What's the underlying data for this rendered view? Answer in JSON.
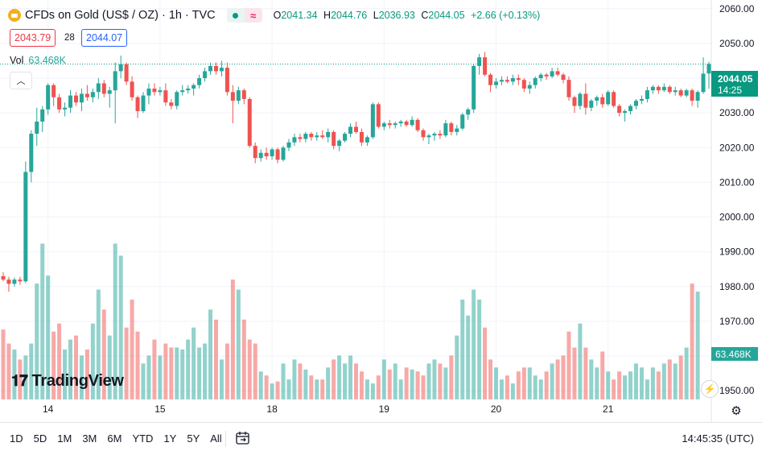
{
  "header": {
    "title": "CFDs on Gold (US$ / OZ) · 1h · TVC",
    "status_icon": "market-open-dot",
    "delay_icon": "wave-icon",
    "ohlc": {
      "o_label": "O",
      "o": "2041.34",
      "h_label": "H",
      "h": "2044.76",
      "l_label": "L",
      "l": "2036.93",
      "c_label": "C",
      "c": "2044.05",
      "change": "+2.66 (+0.13%)"
    }
  },
  "quote": {
    "bid": "2043.79",
    "spread": "28",
    "ask": "2044.07"
  },
  "volume": {
    "label": "Vol",
    "value": "63.468K"
  },
  "watermark": "TradingView",
  "price_label": {
    "value": "2044.05",
    "countdown": "14:25"
  },
  "volume_label": "63.468K",
  "bottom_bar": {
    "ranges": [
      "1D",
      "5D",
      "1M",
      "3M",
      "6M",
      "YTD",
      "1Y",
      "5Y",
      "All"
    ],
    "clock": "14:45:35 (UTC)"
  },
  "colors": {
    "up": "#26a69a",
    "down": "#ef5350",
    "volume_up": "#26a69a80",
    "volume_down": "#ef535080",
    "last_price": "#089981",
    "grid": "#f0f3fa"
  },
  "chart_data": {
    "type": "candlestick",
    "title": "CFDs on Gold (US$ / OZ) · 1h · TVC",
    "y_axis": {
      "ticks": [
        1950,
        1960,
        1970,
        1980,
        1990,
        2000,
        2010,
        2020,
        2030,
        2040,
        2050,
        2060
      ],
      "ylim": [
        1947.5,
        2062.5
      ]
    },
    "x_axis": {
      "ticks": [
        {
          "label": "14",
          "index": 8
        },
        {
          "label": "15",
          "index": 28
        },
        {
          "label": "18",
          "index": 48
        },
        {
          "label": "19",
          "index": 68
        },
        {
          "label": "20",
          "index": 88
        },
        {
          "label": "21",
          "index": 108
        }
      ]
    },
    "candles": [
      [
        1983.0,
        1984.2,
        1981.5,
        1982.0
      ],
      [
        1982.0,
        1982.8,
        1978.5,
        1980.8
      ],
      [
        1980.8,
        1982.6,
        1980.0,
        1982.0
      ],
      [
        1982.0,
        1982.8,
        1980.5,
        1981.5
      ],
      [
        1981.5,
        2016.0,
        1981.0,
        2013.0
      ],
      [
        2013.0,
        2025.0,
        2010.0,
        2024.0
      ],
      [
        2024.0,
        2031.5,
        2020.5,
        2027.5
      ],
      [
        2027.5,
        2032.0,
        2024.5,
        2031.0
      ],
      [
        2031.0,
        2038.5,
        2029.5,
        2038.0
      ],
      [
        2038.0,
        2038.5,
        2032.0,
        2034.5
      ],
      [
        2034.5,
        2035.5,
        2030.0,
        2031.0
      ],
      [
        2031.0,
        2033.0,
        2029.0,
        2031.5
      ],
      [
        2031.5,
        2036.5,
        2030.0,
        2035.0
      ],
      [
        2035.0,
        2036.0,
        2032.0,
        2033.0
      ],
      [
        2033.0,
        2037.0,
        2030.5,
        2035.5
      ],
      [
        2035.5,
        2038.0,
        2033.5,
        2034.5
      ],
      [
        2034.5,
        2037.0,
        2033.0,
        2036.0
      ],
      [
        2036.0,
        2040.0,
        2034.0,
        2038.5
      ],
      [
        2038.5,
        2039.5,
        2034.5,
        2035.5
      ],
      [
        2035.5,
        2037.5,
        2031.5,
        2036.5
      ],
      [
        2036.5,
        2044.5,
        2027.0,
        2042.0
      ],
      [
        2042.0,
        2046.5,
        2040.0,
        2044.0
      ],
      [
        2044.0,
        2044.5,
        2038.0,
        2039.0
      ],
      [
        2039.0,
        2040.5,
        2033.5,
        2034.5
      ],
      [
        2034.5,
        2035.0,
        2028.5,
        2030.5
      ],
      [
        2030.5,
        2036.0,
        2030.0,
        2035.0
      ],
      [
        2035.0,
        2038.5,
        2032.5,
        2037.0
      ],
      [
        2037.0,
        2038.5,
        2035.0,
        2036.0
      ],
      [
        2036.0,
        2037.5,
        2035.0,
        2036.5
      ],
      [
        2036.5,
        2038.5,
        2032.0,
        2033.0
      ],
      [
        2033.0,
        2034.0,
        2031.0,
        2032.0
      ],
      [
        2032.0,
        2036.5,
        2031.0,
        2036.0
      ],
      [
        2036.0,
        2038.0,
        2035.0,
        2036.5
      ],
      [
        2036.5,
        2038.0,
        2035.5,
        2037.0
      ],
      [
        2037.0,
        2038.5,
        2035.0,
        2038.0
      ],
      [
        2038.0,
        2041.0,
        2037.0,
        2040.0
      ],
      [
        2040.0,
        2043.0,
        2039.0,
        2042.0
      ],
      [
        2042.0,
        2044.5,
        2041.0,
        2043.5
      ],
      [
        2043.5,
        2044.5,
        2041.0,
        2042.0
      ],
      [
        2042.0,
        2045.0,
        2040.5,
        2043.0
      ],
      [
        2043.0,
        2044.5,
        2035.0,
        2036.0
      ],
      [
        2036.0,
        2038.0,
        2027.0,
        2033.5
      ],
      [
        2033.5,
        2037.5,
        2032.5,
        2036.5
      ],
      [
        2036.5,
        2037.0,
        2032.5,
        2034.0
      ],
      [
        2034.0,
        2034.5,
        2020.0,
        2020.5
      ],
      [
        2020.5,
        2021.5,
        2015.5,
        2017.0
      ],
      [
        2017.0,
        2019.5,
        2016.0,
        2018.5
      ],
      [
        2018.5,
        2020.0,
        2016.5,
        2017.5
      ],
      [
        2017.5,
        2020.0,
        2016.5,
        2019.5
      ],
      [
        2019.5,
        2020.0,
        2015.5,
        2016.5
      ],
      [
        2016.5,
        2020.5,
        2016.0,
        2020.0
      ],
      [
        2020.0,
        2022.5,
        2019.0,
        2021.5
      ],
      [
        2021.5,
        2024.0,
        2020.5,
        2023.0
      ],
      [
        2023.0,
        2024.0,
        2021.5,
        2022.5
      ],
      [
        2022.5,
        2024.5,
        2021.5,
        2024.0
      ],
      [
        2024.0,
        2024.5,
        2022.0,
        2023.0
      ],
      [
        2023.0,
        2024.5,
        2022.0,
        2023.5
      ],
      [
        2023.5,
        2025.0,
        2022.5,
        2023.0
      ],
      [
        2023.0,
        2025.5,
        2021.5,
        2024.5
      ],
      [
        2024.5,
        2025.0,
        2019.5,
        2020.5
      ],
      [
        2020.5,
        2022.5,
        2019.0,
        2022.0
      ],
      [
        2022.0,
        2024.5,
        2021.5,
        2024.0
      ],
      [
        2024.0,
        2027.0,
        2023.0,
        2026.0
      ],
      [
        2026.0,
        2027.5,
        2024.0,
        2024.5
      ],
      [
        2024.5,
        2025.5,
        2020.5,
        2021.5
      ],
      [
        2021.5,
        2023.5,
        2020.5,
        2023.0
      ],
      [
        2023.0,
        2033.0,
        2022.5,
        2032.5
      ],
      [
        2032.5,
        2033.0,
        2025.5,
        2026.0
      ],
      [
        2026.0,
        2027.5,
        2025.0,
        2027.0
      ],
      [
        2027.0,
        2028.0,
        2025.5,
        2026.5
      ],
      [
        2026.5,
        2027.5,
        2025.5,
        2027.0
      ],
      [
        2027.0,
        2028.0,
        2026.0,
        2027.5
      ],
      [
        2027.5,
        2028.0,
        2026.0,
        2026.5
      ],
      [
        2026.5,
        2029.0,
        2026.0,
        2028.0
      ],
      [
        2028.0,
        2028.5,
        2024.5,
        2025.0
      ],
      [
        2025.0,
        2025.5,
        2022.0,
        2023.0
      ],
      [
        2023.0,
        2024.0,
        2021.0,
        2023.5
      ],
      [
        2023.5,
        2024.5,
        2022.0,
        2024.0
      ],
      [
        2024.0,
        2025.0,
        2022.5,
        2023.5
      ],
      [
        2023.5,
        2028.0,
        2023.0,
        2027.0
      ],
      [
        2027.0,
        2027.5,
        2023.5,
        2024.5
      ],
      [
        2024.5,
        2026.5,
        2023.5,
        2025.5
      ],
      [
        2025.5,
        2030.0,
        2025.0,
        2029.5
      ],
      [
        2029.5,
        2031.5,
        2028.0,
        2031.0
      ],
      [
        2031.0,
        2044.0,
        2030.0,
        2043.5
      ],
      [
        2043.5,
        2047.0,
        2041.0,
        2046.0
      ],
      [
        2046.0,
        2047.5,
        2040.5,
        2041.0
      ],
      [
        2041.0,
        2041.5,
        2036.0,
        2038.0
      ],
      [
        2038.0,
        2040.0,
        2037.0,
        2039.0
      ],
      [
        2039.0,
        2040.5,
        2038.0,
        2039.5
      ],
      [
        2039.5,
        2040.5,
        2038.5,
        2039.0
      ],
      [
        2039.0,
        2041.0,
        2038.0,
        2040.0
      ],
      [
        2040.0,
        2041.0,
        2038.0,
        2039.5
      ],
      [
        2039.5,
        2040.0,
        2036.0,
        2037.0
      ],
      [
        2037.0,
        2039.0,
        2035.5,
        2038.0
      ],
      [
        2038.0,
        2040.5,
        2037.0,
        2040.0
      ],
      [
        2040.0,
        2041.5,
        2039.0,
        2041.0
      ],
      [
        2041.0,
        2041.5,
        2039.5,
        2040.5
      ],
      [
        2040.5,
        2043.0,
        2040.0,
        2042.0
      ],
      [
        2042.0,
        2043.0,
        2040.5,
        2041.0
      ],
      [
        2041.0,
        2041.5,
        2038.5,
        2039.5
      ],
      [
        2039.5,
        2040.5,
        2033.5,
        2034.5
      ],
      [
        2034.5,
        2035.0,
        2030.0,
        2032.0
      ],
      [
        2032.0,
        2036.0,
        2031.0,
        2035.5
      ],
      [
        2035.5,
        2038.5,
        2029.5,
        2031.5
      ],
      [
        2031.5,
        2034.0,
        2030.5,
        2033.5
      ],
      [
        2033.5,
        2035.0,
        2032.0,
        2034.5
      ],
      [
        2034.5,
        2035.5,
        2031.5,
        2032.5
      ],
      [
        2032.5,
        2036.5,
        2032.0,
        2036.0
      ],
      [
        2036.0,
        2036.5,
        2031.5,
        2032.0
      ],
      [
        2032.0,
        2032.5,
        2029.0,
        2030.0
      ],
      [
        2030.0,
        2031.0,
        2027.5,
        2030.5
      ],
      [
        2030.5,
        2032.5,
        2029.5,
        2032.0
      ],
      [
        2032.0,
        2034.0,
        2031.0,
        2033.5
      ],
      [
        2033.5,
        2035.0,
        2032.5,
        2034.0
      ],
      [
        2034.0,
        2037.5,
        2033.0,
        2036.5
      ],
      [
        2036.5,
        2038.0,
        2035.5,
        2037.5
      ],
      [
        2037.5,
        2038.0,
        2035.5,
        2036.5
      ],
      [
        2036.5,
        2038.5,
        2036.0,
        2037.5
      ],
      [
        2037.5,
        2038.0,
        2035.5,
        2036.0
      ],
      [
        2036.0,
        2037.5,
        2035.0,
        2036.5
      ],
      [
        2036.5,
        2037.0,
        2034.5,
        2035.0
      ],
      [
        2035.0,
        2037.0,
        2034.5,
        2036.5
      ],
      [
        2036.5,
        2037.0,
        2032.0,
        2033.5
      ],
      [
        2033.5,
        2036.5,
        2031.5,
        2036.0
      ],
      [
        2036.0,
        2046.0,
        2035.5,
        2041.3
      ],
      [
        2041.34,
        2044.76,
        2036.93,
        2044.05
      ]
    ],
    "volume_k": [
      35,
      28,
      25,
      20,
      22,
      28,
      58,
      78,
      62,
      34,
      38,
      25,
      30,
      32,
      22,
      25,
      38,
      55,
      45,
      32,
      78,
      72,
      36,
      50,
      34,
      18,
      22,
      30,
      22,
      28,
      26,
      26,
      25,
      30,
      36,
      26,
      28,
      45,
      40,
      20,
      28,
      60,
      55,
      40,
      30,
      28,
      14,
      12,
      8,
      9,
      18,
      10,
      20,
      18,
      15,
      12,
      10,
      10,
      16,
      20,
      22,
      18,
      22,
      18,
      14,
      10,
      8,
      12,
      20,
      15,
      18,
      10,
      16,
      15,
      14,
      12,
      18,
      20,
      18,
      16,
      22,
      32,
      50,
      42,
      55,
      50,
      36,
      20,
      16,
      10,
      12,
      8,
      14,
      16,
      16,
      12,
      10,
      14,
      18,
      20,
      22,
      34,
      26,
      38,
      26,
      20,
      16,
      24,
      14,
      10,
      14,
      12,
      14,
      18,
      16,
      10,
      16,
      14,
      18,
      20,
      18,
      22,
      26,
      58,
      54
    ],
    "volume_ylim": [
      0,
      200
    ],
    "last_price": 2044.05
  }
}
